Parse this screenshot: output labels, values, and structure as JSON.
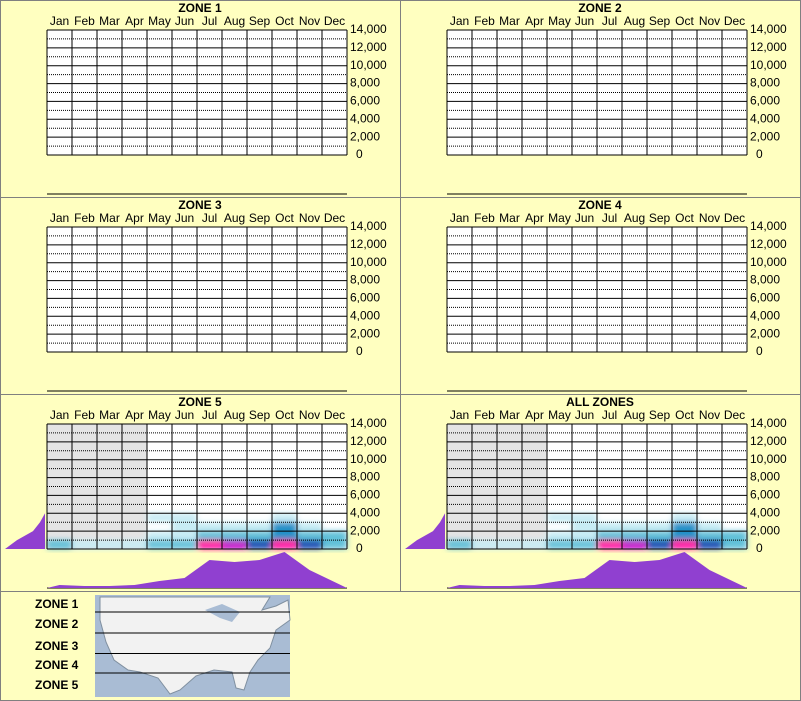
{
  "months": [
    "Jan",
    "Feb",
    "Mar",
    "Apr",
    "May",
    "Jun",
    "Jul",
    "Aug",
    "Sep",
    "Oct",
    "Nov",
    "Dec"
  ],
  "ylim": [
    0,
    14000
  ],
  "yticks": [
    0,
    {
      "value": 2000,
      "label": "2,000"
    },
    {
      "value": 4000,
      "label": "4,000"
    },
    {
      "value": 6000,
      "label": "6,000"
    },
    {
      "value": 8000,
      "label": "8,000"
    },
    {
      "value": 10000,
      "label": "10,000"
    },
    {
      "value": 12000,
      "label": "12,000"
    },
    {
      "value": 14000,
      "label": "14,000"
    }
  ],
  "panels": [
    {
      "title": "ZONE 1"
    },
    {
      "title": "ZONE 2"
    },
    {
      "title": "ZONE 3"
    },
    {
      "title": "ZONE 4"
    },
    {
      "title": "ZONE 5",
      "shaded_months": [
        "Jan",
        "Feb",
        "Mar",
        "Apr"
      ],
      "elevation_bins": [
        0,
        1000,
        2000,
        3000,
        4000
      ],
      "density": [
        [
          2,
          1,
          1,
          1,
          2,
          3,
          9,
          8,
          6,
          9,
          6,
          3
        ],
        [
          0,
          0,
          0,
          0,
          1,
          1,
          3,
          3,
          3,
          5,
          3,
          2
        ],
        [
          0,
          0,
          0,
          0,
          0,
          1,
          1,
          1,
          1,
          4,
          1,
          0
        ],
        [
          0,
          0,
          0,
          0,
          1,
          1,
          0,
          0,
          0,
          1,
          0,
          0
        ]
      ],
      "elevation_profile": [
        40,
        28,
        12,
        5,
        0
      ],
      "month_profile": [
        3,
        2,
        2,
        3,
        7,
        10,
        28,
        26,
        28,
        36,
        18,
        6
      ]
    },
    {
      "title": "ALL ZONES",
      "shaded_months": [
        "Jan",
        "Feb",
        "Mar",
        "Apr"
      ],
      "elevation_bins": [
        0,
        1000,
        2000,
        3000,
        4000
      ],
      "density": [
        [
          2,
          1,
          1,
          1,
          2,
          3,
          9,
          8,
          6,
          9,
          6,
          3
        ],
        [
          0,
          0,
          0,
          0,
          1,
          1,
          3,
          3,
          3,
          5,
          3,
          2
        ],
        [
          0,
          0,
          0,
          0,
          0,
          1,
          1,
          1,
          1,
          4,
          1,
          0
        ],
        [
          0,
          0,
          0,
          0,
          1,
          1,
          0,
          0,
          0,
          1,
          0,
          0
        ]
      ],
      "elevation_profile": [
        40,
        28,
        12,
        5,
        0
      ],
      "month_profile": [
        3,
        2,
        2,
        3,
        7,
        10,
        28,
        26,
        28,
        36,
        18,
        6
      ]
    }
  ],
  "map": {
    "zones": [
      "ZONE 1",
      "ZONE 2",
      "ZONE 3",
      "ZONE 4",
      "ZONE 5"
    ]
  }
}
